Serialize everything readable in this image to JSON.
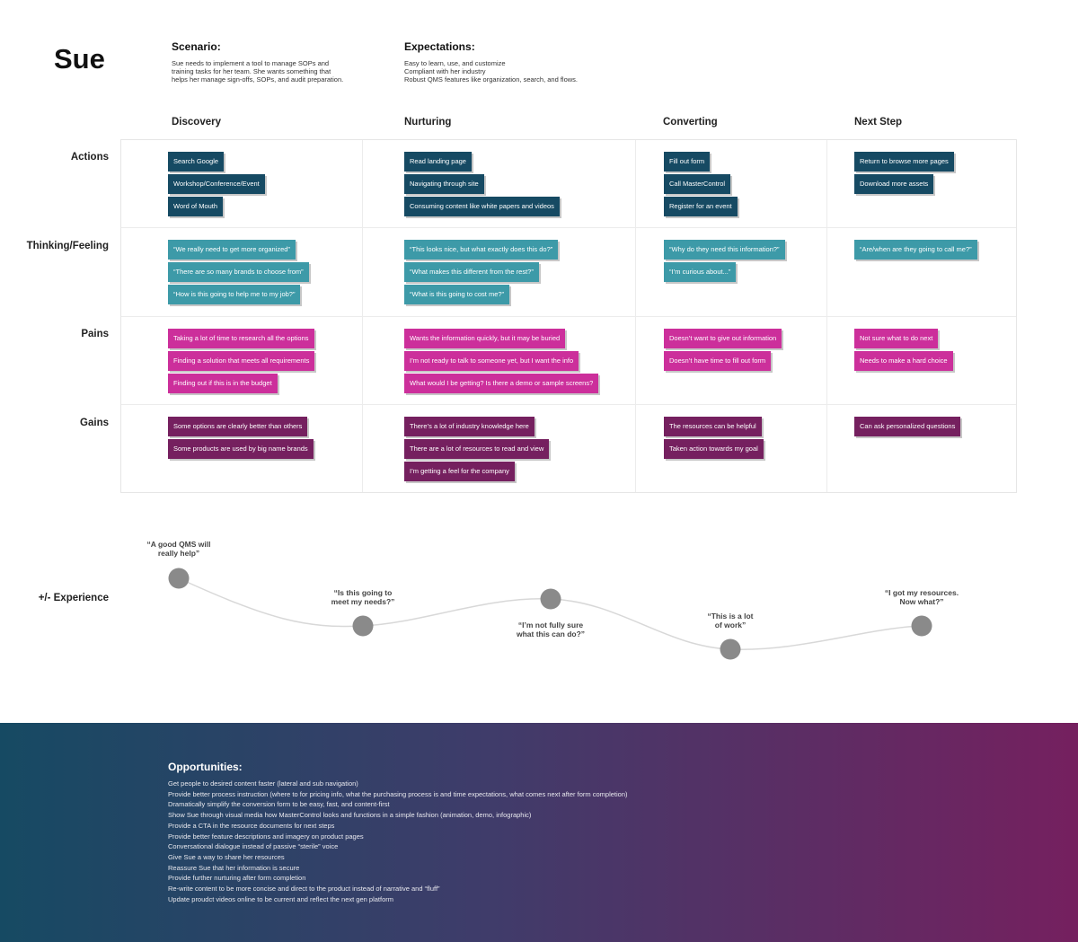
{
  "persona": "Sue",
  "scenario": {
    "title": "Scenario:",
    "lines": [
      "Sue needs to implement a tool to manage SOPs and",
      "training tasks for her team. She wants something that",
      "helps her manage sign-offs, SOPs, and audit preparation."
    ]
  },
  "expectations": {
    "title": "Expectations:",
    "lines": [
      "Easy to learn, use, and customize",
      "Compliant with her industry",
      "Robust QMS features like organization, search, and flows."
    ]
  },
  "stages": [
    "Discovery",
    "Nurturing",
    "Converting",
    "Next Step"
  ],
  "row_labels": [
    "Actions",
    "Thinking/Feeling",
    "Pains",
    "Gains"
  ],
  "actions": [
    [
      "Search Google",
      "Workshop/Conference/Event",
      "Word of Mouth"
    ],
    [
      "Read landing page",
      "Navigating through site",
      "Consuming content like white papers and videos"
    ],
    [
      "Fill out form",
      "Call MasterControl",
      "Register for an event"
    ],
    [
      "Return to browse more pages",
      "Download more assets"
    ]
  ],
  "thinking": [
    [
      "“We really need to get more organized”",
      "“There are so many brands to choose from”",
      "“How is this going to help me to my job?”"
    ],
    [
      "“This looks nice, but what exactly does this do?”",
      "“What makes this different from the rest?”",
      "“What is this going to cost me?”"
    ],
    [
      "“Why do they need this information?”",
      "“I’m curious about...”"
    ],
    [
      "“Are/when are they going to call me?”"
    ]
  ],
  "pains": [
    [
      "Taking a lot of time to research all the options",
      "Finding a solution that meets all requirements",
      "Finding out if this is in the budget"
    ],
    [
      "Wants the information quickly, but it may be buried",
      "I’m not ready to talk to someone yet, but I want the info",
      "What would I be getting? Is there a demo or sample screens?"
    ],
    [
      "Doesn’t want to give out information",
      "Doesn’t have time to fill out form"
    ],
    [
      "Not sure what to do next",
      "Needs to make a hard choice"
    ]
  ],
  "gains": [
    [
      "Some options are clearly better than others",
      "Some products are used by big name brands"
    ],
    [
      "There’s a lot of industry knowledge here",
      "There are a lot of resources to read and view",
      "I’m getting a feel for the company"
    ],
    [
      "The resources can be helpful",
      "Taken action towards my goal"
    ],
    [
      "Can ask personalized questions"
    ]
  ],
  "experience": {
    "label": "+/- Experience",
    "quotes": [
      "“A good QMS will\nreally help”",
      "“Is this going to\nmeet my needs?”",
      "“I’m not fully sure\nwhat this can do?”",
      "“This is a lot\nof work”",
      "“I got my resources.\nNow what?”"
    ]
  },
  "opportunities": {
    "title": "Opportunities:",
    "items": [
      "Get people to desired content faster (lateral  and sub navigation)",
      "Provide better process instruction (where to for pricing info, what the purchasing process is and time expectations, what comes next after form completion)",
      "Dramatically simplify the conversion form to be easy, fast, and content-first",
      "Show Sue through visual media how MasterControl looks and functions in a simple fashion (animation, demo, infographic)",
      "Provide a CTA in the resource documents for next steps",
      "Provide better feature descriptions and imagery on product pages",
      "Conversational dialogue instead of passive “sterile” voice",
      "Give Sue a way to share her resources",
      "Reassure Sue that her information is secure",
      "Provide further nurturing after form completion",
      "Re-write content to be more concise and direct to the product instead of narrative and “fluff”",
      "Update proudct videos online to be current and reflect the next gen platform"
    ]
  },
  "colors": {
    "action": "#164a63",
    "thinking": "#3d9aa8",
    "pain": "#cc2f9b",
    "gain": "#75205f",
    "footer_start": "#164a63",
    "footer_end": "#75205f"
  }
}
